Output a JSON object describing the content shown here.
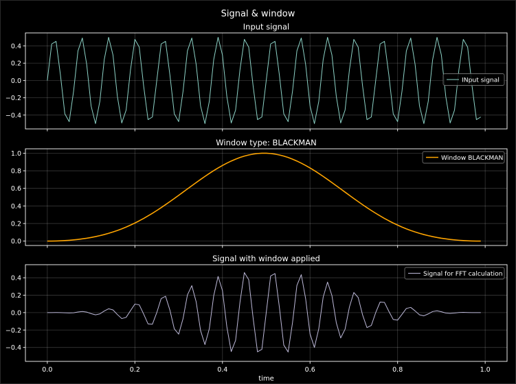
{
  "figure": {
    "suptitle": "Signal & window",
    "xlabel": "time"
  },
  "chart_data": [
    {
      "type": "line",
      "title": "Input signal",
      "xlabel": "",
      "ylabel": "",
      "xlim": [
        -0.05,
        1.05
      ],
      "ylim": [
        -0.56,
        0.55
      ],
      "xticks": [
        0.0,
        0.2,
        0.4,
        0.6,
        0.8,
        1.0
      ],
      "yticks": [
        -0.4,
        -0.2,
        0.0,
        0.2,
        0.4
      ],
      "yticklabels": [
        "−0.4",
        "−0.2",
        "0.0",
        "0.2",
        "0.4"
      ],
      "grid": true,
      "legend_position": "center-right",
      "series": [
        {
          "name": "INput signal",
          "color": "#8dd3c7",
          "function": "0.5*sin(2*pi*16*t)",
          "x_start": 0.0,
          "x_step": 0.01,
          "n_points": 100,
          "amplitude": 0.5,
          "frequency": 16
        }
      ]
    },
    {
      "type": "line",
      "title": "Window type: BLACKMAN",
      "xlabel": "",
      "ylabel": "",
      "xlim": [
        -0.05,
        1.05
      ],
      "ylim": [
        -0.05,
        1.05
      ],
      "xticks": [
        0.0,
        0.2,
        0.4,
        0.6,
        0.8,
        1.0
      ],
      "yticks": [
        0.0,
        0.2,
        0.4,
        0.6,
        0.8,
        1.0
      ],
      "yticklabels": [
        "0.0",
        "0.2",
        "0.4",
        "0.6",
        "0.8",
        "1.0"
      ],
      "grid": true,
      "legend_position": "top-right",
      "series": [
        {
          "name": "Window BLACKMAN",
          "color": "#ffa500",
          "function": "blackman(100)",
          "x_start": 0.0,
          "x_step": 0.01,
          "n_points": 100
        }
      ]
    },
    {
      "type": "line",
      "title": "Signal with window applied",
      "xlabel": "time",
      "ylabel": "",
      "xlim": [
        -0.05,
        1.05
      ],
      "ylim": [
        -0.56,
        0.55
      ],
      "xticks": [
        0.0,
        0.2,
        0.4,
        0.6,
        0.8,
        1.0
      ],
      "xticklabels": [
        "0.0",
        "0.2",
        "0.4",
        "0.6",
        "0.8",
        "1.0"
      ],
      "yticks": [
        -0.4,
        -0.2,
        0.0,
        0.2,
        0.4
      ],
      "yticklabels": [
        "−0.4",
        "−0.2",
        "0.0",
        "0.2",
        "0.4"
      ],
      "grid": true,
      "legend_position": "top-right",
      "series": [
        {
          "name": "Signal for FFT calculation",
          "color": "#bebada",
          "function": "input_signal * blackman_window",
          "x_start": 0.0,
          "x_step": 0.01,
          "n_points": 100
        }
      ]
    }
  ]
}
